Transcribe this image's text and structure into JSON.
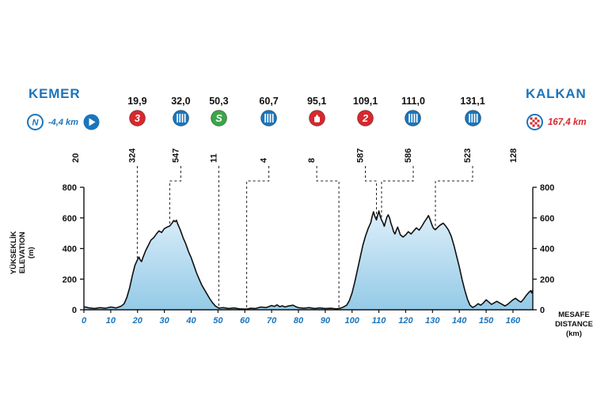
{
  "header": {
    "start_city": "KEMER",
    "finish_city": "KALKAN",
    "neutral_distance": "-4,4 km",
    "total_distance": "167,4 km"
  },
  "axes": {
    "left_label_lines": [
      "YÜKSEKLİK",
      "ELEVATION",
      "(m)"
    ],
    "bottom_label_lines": [
      "MESAFE",
      "DISTANCE",
      "(km)"
    ]
  },
  "colors": {
    "blue": "#1b75bc",
    "red": "#d7282e",
    "green": "#3aa648",
    "profile_line": "#111111",
    "profile_fill_top": "#ddeffa",
    "profile_fill_bottom": "#94cae7"
  },
  "chart_data": {
    "type": "area",
    "xlabel": "MESAFE DISTANCE (km)",
    "ylabel": "YÜKSEKLİK ELEVATION (m)",
    "xlim": [
      0,
      167.4
    ],
    "ylim": [
      0,
      800
    ],
    "x_ticks": [
      0,
      10,
      20,
      30,
      40,
      50,
      60,
      70,
      80,
      90,
      100,
      110,
      120,
      130,
      140,
      150,
      160
    ],
    "y_ticks": [
      0,
      200,
      400,
      600,
      800
    ],
    "start_point": {
      "km": 0,
      "elevation": 20,
      "label": "20"
    },
    "finish_point": {
      "km": 167.4,
      "elevation": 128,
      "label": "128"
    },
    "markers": [
      {
        "km": 19.9,
        "distance_label": "19,9",
        "elevation": 324,
        "elevation_label": "324",
        "type": "category-3-climb",
        "icon_text": "3"
      },
      {
        "km": 32.0,
        "distance_label": "32,0",
        "elevation": 547,
        "elevation_label": "547",
        "type": "tunnel",
        "icon_text": ""
      },
      {
        "km": 50.3,
        "distance_label": "50,3",
        "elevation": 11,
        "elevation_label": "11",
        "type": "sprint",
        "icon_text": "S"
      },
      {
        "km": 60.7,
        "distance_label": "60,7",
        "elevation": 4,
        "elevation_label": "4",
        "type": "tunnel",
        "icon_text": ""
      },
      {
        "km": 95.1,
        "distance_label": "95,1",
        "elevation": 8,
        "elevation_label": "8",
        "type": "feed-zone",
        "icon_text": ""
      },
      {
        "km": 109.1,
        "distance_label": "109,1",
        "elevation": 587,
        "elevation_label": "587",
        "type": "category-2-climb",
        "icon_text": "2"
      },
      {
        "km": 111.0,
        "distance_label": "111,0",
        "elevation": 586,
        "elevation_label": "586",
        "type": "tunnel",
        "icon_text": ""
      },
      {
        "km": 131.1,
        "distance_label": "131,1",
        "elevation": 523,
        "elevation_label": "523",
        "type": "tunnel",
        "icon_text": ""
      }
    ],
    "profile": [
      [
        0,
        20
      ],
      [
        2,
        12
      ],
      [
        4,
        8
      ],
      [
        6,
        14
      ],
      [
        8,
        10
      ],
      [
        10,
        18
      ],
      [
        12,
        12
      ],
      [
        14,
        25
      ],
      [
        15,
        40
      ],
      [
        16,
        80
      ],
      [
        17,
        140
      ],
      [
        18,
        220
      ],
      [
        19,
        290
      ],
      [
        19.9,
        324
      ],
      [
        20.5,
        345
      ],
      [
        21,
        325
      ],
      [
        21.5,
        315
      ],
      [
        22,
        340
      ],
      [
        23,
        385
      ],
      [
        24,
        420
      ],
      [
        25,
        455
      ],
      [
        26,
        470
      ],
      [
        27,
        495
      ],
      [
        28,
        515
      ],
      [
        29,
        505
      ],
      [
        30,
        530
      ],
      [
        31,
        540
      ],
      [
        32,
        547
      ],
      [
        33,
        570
      ],
      [
        33.5,
        583
      ],
      [
        34,
        575
      ],
      [
        34.5,
        585
      ],
      [
        35,
        560
      ],
      [
        36,
        520
      ],
      [
        37,
        470
      ],
      [
        38,
        430
      ],
      [
        39,
        380
      ],
      [
        40,
        340
      ],
      [
        41,
        290
      ],
      [
        42,
        240
      ],
      [
        43,
        200
      ],
      [
        44,
        160
      ],
      [
        45,
        130
      ],
      [
        46,
        100
      ],
      [
        47,
        70
      ],
      [
        48,
        45
      ],
      [
        49,
        25
      ],
      [
        50.3,
        11
      ],
      [
        52,
        14
      ],
      [
        54,
        8
      ],
      [
        56,
        12
      ],
      [
        58,
        6
      ],
      [
        60.7,
        4
      ],
      [
        62,
        10
      ],
      [
        64,
        8
      ],
      [
        66,
        18
      ],
      [
        68,
        14
      ],
      [
        70,
        28
      ],
      [
        71,
        22
      ],
      [
        72,
        32
      ],
      [
        73,
        20
      ],
      [
        74,
        26
      ],
      [
        75,
        18
      ],
      [
        76,
        24
      ],
      [
        78,
        30
      ],
      [
        79,
        20
      ],
      [
        80,
        14
      ],
      [
        82,
        10
      ],
      [
        84,
        14
      ],
      [
        86,
        8
      ],
      [
        88,
        12
      ],
      [
        90,
        8
      ],
      [
        92,
        10
      ],
      [
        94,
        6
      ],
      [
        95.1,
        8
      ],
      [
        96,
        12
      ],
      [
        97,
        20
      ],
      [
        98,
        30
      ],
      [
        99,
        60
      ],
      [
        100,
        110
      ],
      [
        101,
        180
      ],
      [
        102,
        260
      ],
      [
        103,
        340
      ],
      [
        104,
        420
      ],
      [
        105,
        480
      ],
      [
        106,
        530
      ],
      [
        107,
        570
      ],
      [
        107.5,
        610
      ],
      [
        108,
        640
      ],
      [
        108.5,
        610
      ],
      [
        109.1,
        587
      ],
      [
        109.6,
        620
      ],
      [
        110,
        645
      ],
      [
        110.5,
        610
      ],
      [
        111,
        586
      ],
      [
        111.5,
        570
      ],
      [
        112,
        545
      ],
      [
        112.5,
        575
      ],
      [
        113,
        605
      ],
      [
        113.5,
        620
      ],
      [
        114,
        600
      ],
      [
        114.5,
        565
      ],
      [
        115,
        540
      ],
      [
        115.5,
        510
      ],
      [
        116,
        495
      ],
      [
        116.5,
        520
      ],
      [
        117,
        540
      ],
      [
        117.5,
        515
      ],
      [
        118,
        490
      ],
      [
        119,
        475
      ],
      [
        120,
        490
      ],
      [
        121,
        510
      ],
      [
        122,
        495
      ],
      [
        123,
        515
      ],
      [
        124,
        535
      ],
      [
        125,
        520
      ],
      [
        126,
        545
      ],
      [
        127,
        575
      ],
      [
        128,
        600
      ],
      [
        128.5,
        615
      ],
      [
        129,
        595
      ],
      [
        129.5,
        570
      ],
      [
        130,
        545
      ],
      [
        130.5,
        530
      ],
      [
        131.1,
        523
      ],
      [
        132,
        540
      ],
      [
        133,
        555
      ],
      [
        134,
        565
      ],
      [
        135,
        545
      ],
      [
        136,
        520
      ],
      [
        137,
        480
      ],
      [
        138,
        420
      ],
      [
        139,
        350
      ],
      [
        140,
        280
      ],
      [
        141,
        200
      ],
      [
        142,
        130
      ],
      [
        143,
        70
      ],
      [
        144,
        30
      ],
      [
        145,
        15
      ],
      [
        146,
        25
      ],
      [
        147,
        40
      ],
      [
        148,
        30
      ],
      [
        149,
        45
      ],
      [
        150,
        65
      ],
      [
        151,
        50
      ],
      [
        152,
        35
      ],
      [
        153,
        45
      ],
      [
        154,
        55
      ],
      [
        155,
        45
      ],
      [
        156,
        35
      ],
      [
        157,
        25
      ],
      [
        158,
        35
      ],
      [
        159,
        50
      ],
      [
        160,
        65
      ],
      [
        161,
        75
      ],
      [
        162,
        60
      ],
      [
        163,
        50
      ],
      [
        164,
        70
      ],
      [
        165,
        95
      ],
      [
        166,
        115
      ],
      [
        166.7,
        125
      ],
      [
        167,
        110
      ],
      [
        167.4,
        128
      ]
    ]
  }
}
